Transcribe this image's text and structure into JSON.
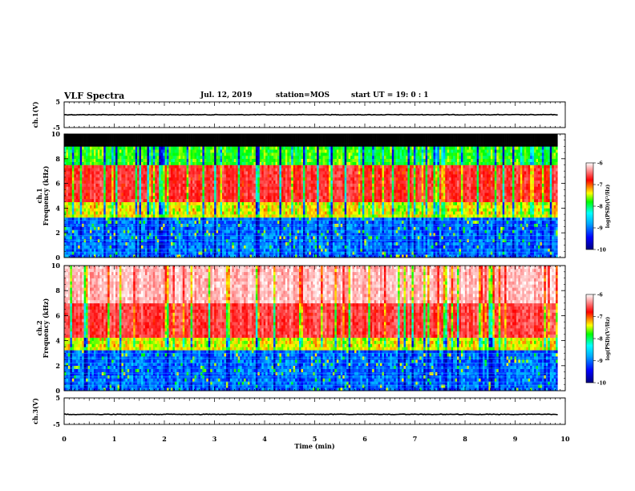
{
  "header": {
    "title": "VLF Spectra",
    "date": "Jul. 12, 2019",
    "station": "station=MOS",
    "start": "start UT =  19: 0  : 1"
  },
  "chart_data": [
    {
      "type": "line",
      "panel": "ch1-waveform",
      "ylabel": "ch.1(V)",
      "ylim": [
        -5,
        5
      ],
      "yticks": [
        "5",
        "-5"
      ],
      "series": [
        {
          "values": [
            0
          ]
        }
      ],
      "x_range": [
        0,
        9.85
      ]
    },
    {
      "type": "heatmap",
      "panel": "ch1-spectrogram",
      "ylabel_top": "ch.1",
      "ylabel": "Frequency (kHz)",
      "ylim": [
        0,
        10
      ],
      "yticks": [
        "0",
        "2",
        "4",
        "6",
        "8",
        "10"
      ],
      "x_range": [
        0,
        9.85
      ],
      "colorbar": {
        "label": "log(PSD)(V²/Hz)",
        "range": [
          -10,
          -6
        ],
        "ticks": [
          "-6",
          "-7",
          "-8",
          "-9",
          "-10"
        ]
      },
      "bands": [
        {
          "from": 0,
          "to": 3.2,
          "level": -9.2
        },
        {
          "from": 3.2,
          "to": 4.5,
          "level": -7.8
        },
        {
          "from": 4.5,
          "to": 7.6,
          "level": -7.0
        },
        {
          "from": 7.6,
          "to": 9.0,
          "level": -8.2
        },
        {
          "from": 9.0,
          "to": 10,
          "level": "no data"
        }
      ]
    },
    {
      "type": "heatmap",
      "panel": "ch2-spectrogram",
      "ylabel_top": "ch.2",
      "ylabel": "Frequency (kHz)",
      "ylim": [
        0,
        10
      ],
      "yticks": [
        "0",
        "2",
        "4",
        "6",
        "8",
        "10"
      ],
      "x_range": [
        0,
        9.85
      ],
      "colorbar": {
        "label": "log(PSD)(V²/Hz)",
        "range": [
          -10,
          -6
        ],
        "ticks": [
          "-6",
          "-7",
          "-8",
          "-9",
          "-10"
        ]
      },
      "bands": [
        {
          "from": 0,
          "to": 3.2,
          "level": -9.2
        },
        {
          "from": 3.2,
          "to": 4.2,
          "level": -7.8
        },
        {
          "from": 4.2,
          "to": 7.0,
          "level": -6.9
        },
        {
          "from": 7.0,
          "to": 10,
          "level": -6.3
        }
      ]
    },
    {
      "type": "line",
      "panel": "ch3-waveform",
      "ylabel": "ch.3(V)",
      "ylim": [
        -5,
        5
      ],
      "yticks": [
        "5",
        "-5"
      ],
      "series": [
        {
          "values": [
            -1.2
          ]
        }
      ],
      "x_range": [
        0,
        9.85
      ]
    }
  ],
  "xaxis": {
    "label": "Time (min)",
    "ticks": [
      "0",
      "1",
      "2",
      "3",
      "4",
      "5",
      "6",
      "7",
      "8",
      "9",
      "10"
    ],
    "range": [
      0,
      10
    ]
  },
  "colors": {
    "dark_blue": "#00007f",
    "blue": "#0000ff",
    "cyan": "#00ffff",
    "green": "#00ff00",
    "yellow": "#ffff00",
    "red": "#ff0000",
    "white": "#ffffff",
    "black": "#000000"
  }
}
